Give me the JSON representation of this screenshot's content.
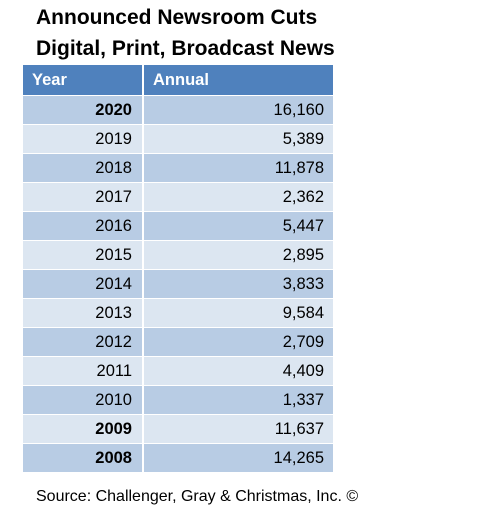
{
  "chart_data": {
    "type": "table",
    "title": "Announced Newsroom Cuts",
    "subtitle": "Digital, Print, Broadcast News",
    "columns": [
      "Year",
      "Annual"
    ],
    "rows": [
      {
        "year": "2020",
        "annual": "16,160",
        "bold": true
      },
      {
        "year": "2019",
        "annual": "5,389",
        "bold": false
      },
      {
        "year": "2018",
        "annual": "11,878",
        "bold": false
      },
      {
        "year": "2017",
        "annual": "2,362",
        "bold": false
      },
      {
        "year": "2016",
        "annual": "5,447",
        "bold": false
      },
      {
        "year": "2015",
        "annual": "2,895",
        "bold": false
      },
      {
        "year": "2014",
        "annual": "3,833",
        "bold": false
      },
      {
        "year": "2013",
        "annual": "9,584",
        "bold": false
      },
      {
        "year": "2012",
        "annual": "2,709",
        "bold": false
      },
      {
        "year": "2011",
        "annual": "4,409",
        "bold": false
      },
      {
        "year": "2010",
        "annual": "1,337",
        "bold": false
      },
      {
        "year": "2009",
        "annual": "11,637",
        "bold": true
      },
      {
        "year": "2008",
        "annual": "14,265",
        "bold": true
      }
    ],
    "source": "Source: Challenger, Gray & Christmas, Inc. ©"
  },
  "colors": {
    "header": "#4f81bd",
    "row_dark": "#b8cce4",
    "row_light": "#dce6f1"
  }
}
